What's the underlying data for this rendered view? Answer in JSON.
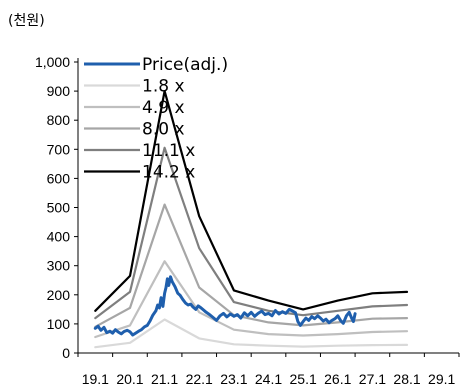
{
  "chart_data": {
    "type": "line",
    "unit_label": "(천원)",
    "x_categories": [
      "19.1",
      "20.1",
      "21.1",
      "22.1",
      "23.1",
      "24.1",
      "25.1",
      "26.1",
      "27.1",
      "28.1",
      "29.1"
    ],
    "x_range": [
      0,
      10
    ],
    "ylim": [
      0,
      1000
    ],
    "y_ticks": [
      {
        "value": 0,
        "label": "0"
      },
      {
        "value": 100,
        "label": "100"
      },
      {
        "value": 200,
        "label": "200"
      },
      {
        "value": 300,
        "label": "300"
      },
      {
        "value": 400,
        "label": "400"
      },
      {
        "value": 500,
        "label": "500"
      },
      {
        "value": 600,
        "label": "600"
      },
      {
        "value": 700,
        "label": "700"
      },
      {
        "value": 800,
        "label": "800"
      },
      {
        "value": 900,
        "label": "900"
      },
      {
        "value": 1000,
        "label": "1,000"
      }
    ],
    "grid": false,
    "legend_position": "top-left",
    "series": [
      {
        "name": "Price(adj.)",
        "color": "#1f5fad",
        "style": "price",
        "points": [
          [
            0,
            85
          ],
          [
            0.08,
            92
          ],
          [
            0.16,
            78
          ],
          [
            0.25,
            88
          ],
          [
            0.33,
            70
          ],
          [
            0.42,
            75
          ],
          [
            0.5,
            68
          ],
          [
            0.58,
            80
          ],
          [
            0.66,
            72
          ],
          [
            0.75,
            66
          ],
          [
            0.83,
            74
          ],
          [
            0.92,
            78
          ],
          [
            1.0,
            73
          ],
          [
            1.08,
            62
          ],
          [
            1.16,
            68
          ],
          [
            1.25,
            75
          ],
          [
            1.33,
            80
          ],
          [
            1.42,
            90
          ],
          [
            1.5,
            95
          ],
          [
            1.58,
            110
          ],
          [
            1.66,
            130
          ],
          [
            1.75,
            145
          ],
          [
            1.8,
            165
          ],
          [
            1.85,
            155
          ],
          [
            1.9,
            190
          ],
          [
            1.95,
            160
          ],
          [
            2.0,
            205
          ],
          [
            2.04,
            225
          ],
          [
            2.08,
            255
          ],
          [
            2.12,
            232
          ],
          [
            2.17,
            262
          ],
          [
            2.22,
            245
          ],
          [
            2.3,
            228
          ],
          [
            2.38,
            205
          ],
          [
            2.45,
            198
          ],
          [
            2.52,
            185
          ],
          [
            2.6,
            172
          ],
          [
            2.68,
            165
          ],
          [
            2.75,
            168
          ],
          [
            2.82,
            158
          ],
          [
            2.9,
            150
          ],
          [
            2.97,
            162
          ],
          [
            3.05,
            155
          ],
          [
            3.12,
            148
          ],
          [
            3.2,
            140
          ],
          [
            3.3,
            132
          ],
          [
            3.4,
            122
          ],
          [
            3.5,
            112
          ],
          [
            3.6,
            128
          ],
          [
            3.7,
            136
          ],
          [
            3.8,
            124
          ],
          [
            3.9,
            134
          ],
          [
            4.0,
            126
          ],
          [
            4.1,
            132
          ],
          [
            4.2,
            120
          ],
          [
            4.3,
            138
          ],
          [
            4.4,
            128
          ],
          [
            4.5,
            140
          ],
          [
            4.6,
            126
          ],
          [
            4.7,
            136
          ],
          [
            4.8,
            144
          ],
          [
            4.9,
            132
          ],
          [
            5.0,
            136
          ],
          [
            5.1,
            128
          ],
          [
            5.2,
            146
          ],
          [
            5.3,
            134
          ],
          [
            5.4,
            142
          ],
          [
            5.5,
            136
          ],
          [
            5.6,
            150
          ],
          [
            5.7,
            144
          ],
          [
            5.78,
            138
          ],
          [
            5.85,
            108
          ],
          [
            5.92,
            95
          ],
          [
            6.0,
            108
          ],
          [
            6.08,
            120
          ],
          [
            6.16,
            112
          ],
          [
            6.25,
            125
          ],
          [
            6.33,
            118
          ],
          [
            6.42,
            128
          ],
          [
            6.5,
            120
          ],
          [
            6.58,
            110
          ],
          [
            6.66,
            116
          ],
          [
            6.75,
            104
          ],
          [
            6.83,
            112
          ],
          [
            6.92,
            118
          ],
          [
            7.0,
            128
          ],
          [
            7.08,
            112
          ],
          [
            7.16,
            102
          ],
          [
            7.25,
            128
          ],
          [
            7.33,
            140
          ],
          [
            7.4,
            120
          ],
          [
            7.45,
            108
          ],
          [
            7.5,
            135
          ]
        ]
      },
      {
        "name": "1.8 x",
        "color": "#d9d9d9",
        "style": "band",
        "points": [
          [
            0,
            20
          ],
          [
            1,
            35
          ],
          [
            2,
            115
          ],
          [
            3,
            50
          ],
          [
            4,
            30
          ],
          [
            5,
            25
          ],
          [
            6,
            22
          ],
          [
            7,
            25
          ],
          [
            8,
            27
          ],
          [
            9,
            28
          ]
        ]
      },
      {
        "name": "4.9 x",
        "color": "#bfbfbf",
        "style": "band",
        "points": [
          [
            0,
            55
          ],
          [
            1,
            95
          ],
          [
            2,
            315
          ],
          [
            3,
            140
          ],
          [
            4,
            80
          ],
          [
            5,
            65
          ],
          [
            6,
            60
          ],
          [
            7,
            65
          ],
          [
            8,
            72
          ],
          [
            9,
            75
          ]
        ]
      },
      {
        "name": "8.0 x",
        "color": "#a6a6a6",
        "style": "band",
        "points": [
          [
            0,
            90
          ],
          [
            1,
            155
          ],
          [
            2,
            510
          ],
          [
            3,
            225
          ],
          [
            4,
            130
          ],
          [
            5,
            105
          ],
          [
            6,
            95
          ],
          [
            7,
            105
          ],
          [
            8,
            118
          ],
          [
            9,
            120
          ]
        ]
      },
      {
        "name": "11.1 x",
        "color": "#7f7f7f",
        "style": "band",
        "points": [
          [
            0,
            120
          ],
          [
            1,
            210
          ],
          [
            2,
            705
          ],
          [
            3,
            360
          ],
          [
            4,
            175
          ],
          [
            5,
            145
          ],
          [
            6,
            130
          ],
          [
            7,
            145
          ],
          [
            8,
            160
          ],
          [
            9,
            165
          ]
        ]
      },
      {
        "name": "14.2 x",
        "color": "#000000",
        "style": "band",
        "points": [
          [
            0,
            145
          ],
          [
            1,
            265
          ],
          [
            2,
            900
          ],
          [
            3,
            470
          ],
          [
            4,
            215
          ],
          [
            5,
            180
          ],
          [
            6,
            150
          ],
          [
            7,
            180
          ],
          [
            8,
            205
          ],
          [
            9,
            210
          ]
        ]
      }
    ]
  }
}
